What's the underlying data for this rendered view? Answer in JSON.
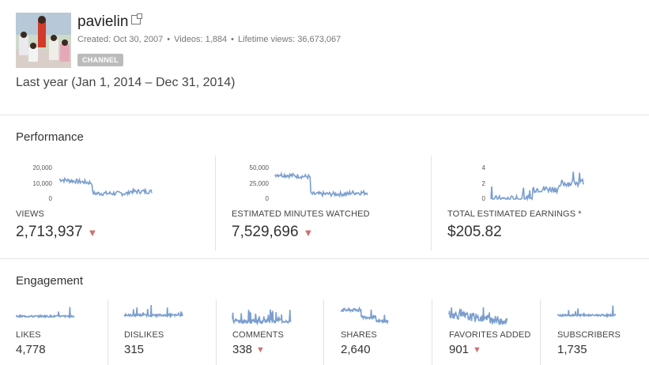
{
  "channel": {
    "name": "pavielin",
    "created": "Created: Oct 30, 2007",
    "videos": "Videos: 1,884",
    "lifetime_views": "Lifetime views: 36,673,067",
    "badge": "CHANNEL",
    "avatar_icon": "channel-avatar-photo"
  },
  "date_range": "Last year (Jan 1, 2014 – Dec 31, 2014)",
  "performance": {
    "title": "Performance",
    "metrics": [
      {
        "label": "VIEWS",
        "value": "2,713,937",
        "trend": "down",
        "ticks": [
          "20,000",
          "10,000",
          "0"
        ]
      },
      {
        "label": "ESTIMATED MINUTES WATCHED",
        "value": "7,529,696",
        "trend": "down",
        "ticks": [
          "50,000",
          "25,000",
          "0"
        ]
      },
      {
        "label": "TOTAL ESTIMATED EARNINGS *",
        "value": "$205.82",
        "trend": "none",
        "ticks": [
          "4",
          "2",
          "0"
        ]
      }
    ]
  },
  "engagement": {
    "title": "Engagement",
    "metrics": [
      {
        "label": "LIKES",
        "value": "4,778",
        "trend": "none"
      },
      {
        "label": "DISLIKES",
        "value": "315",
        "trend": "none"
      },
      {
        "label": "COMMENTS",
        "value": "338",
        "trend": "down"
      },
      {
        "label": "SHARES",
        "value": "2,640",
        "trend": "none"
      },
      {
        "label": "FAVORITES ADDED",
        "value": "901",
        "trend": "down"
      },
      {
        "label": "SUBSCRIBERS",
        "value": "1,735",
        "trend": "none"
      }
    ]
  },
  "trend_down_glyph": "▼",
  "colors": {
    "sparkline": "#7a9ecf",
    "down_arrow": "#d07070",
    "badge": "#bbbbbb"
  }
}
